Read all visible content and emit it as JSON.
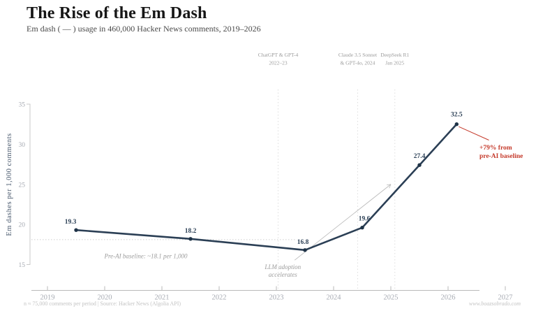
{
  "header": {
    "title": "The Rise of the Em Dash",
    "subtitle": "Em dash ( — ) usage in 460,000 Hacker News comments, 2019–2026"
  },
  "chart_data": {
    "type": "line",
    "title": "The Rise of the Em Dash",
    "subtitle": "Em dash ( — ) usage in 460,000 Hacker News comments, 2019–2026",
    "xlabel": "",
    "ylabel": "Em dashes per 1,000 comments",
    "x": [
      2019.5,
      2021.5,
      2023.5,
      2024.5,
      2025.5,
      2026.15
    ],
    "values": [
      19.3,
      18.2,
      16.8,
      19.6,
      27.4,
      32.5
    ],
    "point_labels": [
      "19.3",
      "18.2",
      "16.8",
      "19.6",
      "27.4",
      "32.5"
    ],
    "x_ticks": [
      2019,
      2020,
      2021,
      2022,
      2023,
      2024,
      2025,
      2026,
      2027
    ],
    "y_ticks": [
      15,
      20,
      25,
      30,
      35
    ],
    "xlim": [
      2018.7,
      2027.5
    ],
    "ylim": [
      15,
      35
    ],
    "grid": false,
    "line_color": "#2b3f55",
    "baseline": {
      "value": 18.1,
      "label": "Pre-AI baseline: ~18.1 per 1,000"
    },
    "events": [
      {
        "x": 2023.03,
        "lines": [
          "ChatGPT & GPT-4",
          "2022–23"
        ]
      },
      {
        "x": 2024.42,
        "lines": [
          "Claude 3.5 Sonnet",
          "& GPT-4o, 2024"
        ]
      },
      {
        "x": 2025.07,
        "lines": [
          "DeepSeek R1",
          "Jan 2025"
        ]
      }
    ],
    "annotations": {
      "llm_adoption": {
        "lines": [
          "LLM adoption",
          "accelerates"
        ],
        "arrow_from": [
          2023.32,
          15.55
        ],
        "arrow_to": [
          2025.0,
          25.0
        ]
      },
      "delta": {
        "lines": [
          "+79% from",
          "pre-AI baseline"
        ],
        "color": "#c53a2b"
      }
    }
  },
  "footer": {
    "left": "n ≈ 75,000 comments per period  |  Source: Hacker News (Algolia API)",
    "right": "www.boazsobrado.com"
  }
}
